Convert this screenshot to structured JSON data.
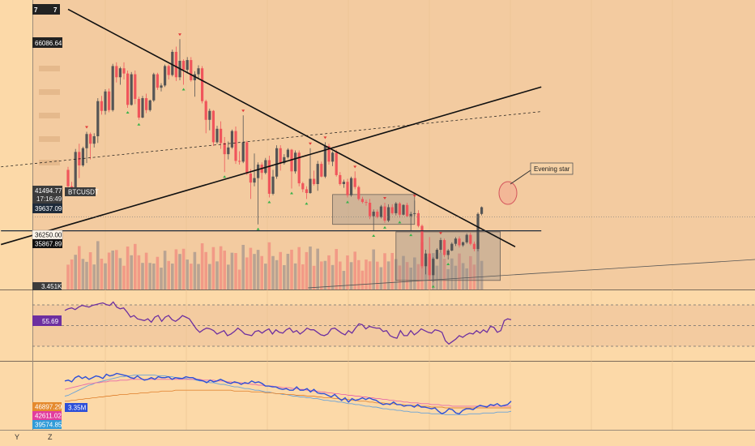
{
  "symbol": "BTCUSDT",
  "colors": {
    "page_bg": "#fcd9a8",
    "pane_bg": "#f3cba0",
    "bull": "#555555",
    "bear": "#f0555b",
    "vol_bull": "#b9a392",
    "vol_bear": "#f29a86",
    "rsi": "#6d2fa0",
    "obv": "#2d4fd8",
    "ma_fast": "#e86aa8",
    "ma_mid": "#e38a3a",
    "ma_slow": "#6aa3d8",
    "trend": "#111111",
    "marker_up": "#e33a3a",
    "marker_down": "#39b24a"
  },
  "price_labels": {
    "top": "7",
    "top_suffix": "7",
    "high": "66086.64",
    "current": "41494.77",
    "countdown": "17:16:49",
    "level": "39637.09",
    "low_a": "36250.00",
    "low_b": "35867.89",
    "volume": "3.451K"
  },
  "annotation": "Evening star",
  "rsi_value": "55.69",
  "obv_labels": {
    "v1": "46897.29",
    "v2": "42611.02",
    "v3": "39574.85",
    "obv": "3.35M"
  },
  "bottom_axis": {
    "y_label": "Y",
    "z_label": "Z"
  },
  "chart_data": {
    "type": "candlestick",
    "symbol": "BTCUSDT",
    "price_range": [
      32000,
      70000
    ],
    "candles": [
      [
        47800,
        48200,
        44700,
        45600
      ],
      [
        45600,
        46200,
        44800,
        45300
      ],
      [
        45300,
        50600,
        45100,
        50200
      ],
      [
        50200,
        51300,
        46700,
        48400
      ],
      [
        48400,
        50900,
        48200,
        50700
      ],
      [
        50700,
        52900,
        48700,
        52600
      ],
      [
        52600,
        52800,
        49200,
        51300
      ],
      [
        51300,
        52700,
        50800,
        52300
      ],
      [
        52300,
        57400,
        51400,
        57000
      ],
      [
        57000,
        57700,
        55200,
        55700
      ],
      [
        55700,
        58600,
        55200,
        58300
      ],
      [
        58300,
        58700,
        55500,
        55800
      ],
      [
        55800,
        62000,
        55600,
        61700
      ],
      [
        61700,
        62200,
        59500,
        60200
      ],
      [
        60200,
        61600,
        59200,
        61400
      ],
      [
        61400,
        62200,
        59900,
        60700
      ],
      [
        60700,
        61100,
        56100,
        56500
      ],
      [
        56500,
        60900,
        56400,
        60600
      ],
      [
        60600,
        61100,
        56600,
        57300
      ],
      [
        57300,
        57600,
        54500,
        54800
      ],
      [
        54800,
        57700,
        54700,
        57400
      ],
      [
        57400,
        58000,
        55400,
        55800
      ],
      [
        55800,
        57200,
        55600,
        57100
      ],
      [
        57100,
        60800,
        56900,
        60600
      ],
      [
        60600,
        60800,
        58500,
        58800
      ],
      [
        58800,
        59400,
        58300,
        59100
      ],
      [
        59100,
        61900,
        58900,
        61700
      ],
      [
        61700,
        61900,
        59900,
        60500
      ],
      [
        60500,
        63900,
        60300,
        63600
      ],
      [
        63600,
        64300,
        59700,
        60200
      ],
      [
        60200,
        65300,
        59800,
        62400
      ],
      [
        62400,
        62600,
        59200,
        61200
      ],
      [
        61200,
        62900,
        60700,
        62500
      ],
      [
        62500,
        62900,
        59600,
        59800
      ],
      [
        59800,
        61000,
        57600,
        60600
      ],
      [
        60600,
        61800,
        60000,
        61400
      ],
      [
        61400,
        61700,
        56700,
        57000
      ],
      [
        57000,
        57200,
        52700,
        54500
      ],
      [
        54500,
        56000,
        53100,
        55700
      ],
      [
        55700,
        55800,
        51000,
        51500
      ],
      [
        51500,
        53700,
        51300,
        53300
      ],
      [
        53300,
        54300,
        50600,
        51400
      ],
      [
        51400,
        52200,
        47500,
        49900
      ],
      [
        49900,
        51600,
        49200,
        50800
      ],
      [
        50800,
        53200,
        50600,
        53000
      ],
      [
        53000,
        53600,
        48600,
        49000
      ],
      [
        49000,
        50300,
        48500,
        48900
      ],
      [
        48900,
        55100,
        48700,
        51500
      ],
      [
        51500,
        51700,
        47100,
        47300
      ],
      [
        47300,
        47900,
        43900,
        46100
      ],
      [
        46100,
        50000,
        45600,
        46700
      ],
      [
        46700,
        48800,
        40500,
        48500
      ],
      [
        48500,
        48800,
        46500,
        47400
      ],
      [
        47400,
        49400,
        47200,
        49100
      ],
      [
        49100,
        49700,
        44100,
        44600
      ],
      [
        44600,
        47800,
        44400,
        46900
      ],
      [
        46900,
        51100,
        46600,
        50700
      ],
      [
        50700,
        51100,
        47700,
        48700
      ],
      [
        48700,
        49900,
        48500,
        49500
      ],
      [
        49500,
        50700,
        49300,
        50500
      ],
      [
        50500,
        50600,
        45300,
        47600
      ],
      [
        47600,
        50400,
        47300,
        50100
      ],
      [
        50100,
        50400,
        45600,
        46000
      ],
      [
        46000,
        46200,
        44800,
        45200
      ],
      [
        45200,
        45600,
        43900,
        44700
      ],
      [
        44700,
        50700,
        44600,
        46600
      ],
      [
        46600,
        47700,
        45700,
        45900
      ],
      [
        45900,
        49000,
        45000,
        48600
      ],
      [
        48600,
        48900,
        46800,
        46900
      ],
      [
        46900,
        51500,
        46700,
        51000
      ],
      [
        51000,
        51300,
        48500,
        48900
      ],
      [
        48900,
        50300,
        48300,
        50100
      ],
      [
        50100,
        50500,
        46900,
        47100
      ],
      [
        47100,
        47500,
        45700,
        45900
      ],
      [
        45900,
        46500,
        45400,
        46200
      ],
      [
        46200,
        46600,
        44100,
        44400
      ],
      [
        44400,
        46900,
        44200,
        46700
      ],
      [
        46700,
        47600,
        45200,
        45500
      ],
      [
        45500,
        45700,
        43700,
        43900
      ],
      [
        43900,
        44200,
        43300,
        43500
      ],
      [
        43500,
        43800,
        43000,
        43400
      ],
      [
        43400,
        43900,
        41200,
        41600
      ],
      [
        41600,
        42500,
        39600,
        42200
      ],
      [
        42200,
        42500,
        41300,
        41500
      ],
      [
        41500,
        43100,
        41300,
        42900
      ],
      [
        42900,
        43400,
        40700,
        41000
      ],
      [
        41000,
        43200,
        40800,
        42800
      ],
      [
        42800,
        43200,
        41800,
        42000
      ],
      [
        42000,
        43500,
        41700,
        43300
      ],
      [
        43300,
        43500,
        41400,
        41800
      ],
      [
        41800,
        43200,
        41700,
        43100
      ],
      [
        43100,
        43400,
        41500,
        41600
      ],
      [
        41600,
        42200,
        39700,
        41900
      ],
      [
        41900,
        43700,
        41600,
        42000
      ],
      [
        42000,
        42400,
        40100,
        40300
      ],
      [
        40300,
        40500,
        34600,
        34900
      ],
      [
        34900,
        37100,
        33800,
        36600
      ],
      [
        36600,
        38800,
        33100,
        33700
      ],
      [
        33700,
        36100,
        32800,
        35900
      ],
      [
        35900,
        37300,
        35800,
        37100
      ],
      [
        37100,
        38700,
        36700,
        38400
      ],
      [
        38400,
        38600,
        36100,
        36400
      ],
      [
        36400,
        37200,
        35800,
        37000
      ],
      [
        37000,
        38100,
        36900,
        37900
      ],
      [
        37900,
        38800,
        37600,
        38600
      ],
      [
        38600,
        38900,
        37400,
        37700
      ],
      [
        37700,
        38200,
        37500,
        38100
      ],
      [
        38100,
        39300,
        37900,
        39100
      ],
      [
        39100,
        39400,
        37700,
        37900
      ],
      [
        37900,
        38200,
        36900,
        37200
      ],
      [
        37200,
        42100,
        36900,
        41900
      ],
      [
        41900,
        42900,
        41700,
        42800
      ]
    ],
    "trendlines": [
      {
        "name": "descending resistance",
        "from": [
          0,
          69300
        ],
        "to": [
          120,
          37500
        ]
      },
      {
        "name": "ascending support",
        "from": [
          -18,
          37800
        ],
        "to": [
          127,
          58900
        ]
      },
      {
        "name": "dashed",
        "from": [
          -18,
          48200
        ],
        "to": [
          127,
          55600
        ]
      },
      {
        "name": "horizontal level",
        "from": [
          -18,
          39637.09
        ],
        "to": [
          127,
          39637.09
        ]
      }
    ],
    "boxes": [
      {
        "from_index": 71,
        "to_index": 93,
        "top": 44500,
        "bottom": 40500
      },
      {
        "from_index": 88,
        "to_index": 116,
        "top": 39500,
        "bottom": 33000
      }
    ],
    "rsi": {
      "value": 55.69,
      "bands": [
        70,
        50,
        30
      ],
      "values": [
        68,
        70,
        71,
        69,
        72,
        74,
        73,
        72,
        74,
        75,
        76,
        77,
        75,
        74,
        78,
        72,
        70,
        71,
        66,
        60,
        62,
        58,
        57,
        56,
        58,
        54,
        60,
        62,
        55,
        60,
        62,
        57,
        55,
        58,
        62,
        60,
        58,
        52,
        46,
        42,
        45,
        47,
        46,
        44,
        40,
        42,
        44,
        38,
        40,
        43,
        47,
        44,
        40,
        39,
        38,
        43,
        44,
        41,
        44,
        46,
        40,
        45,
        42,
        41,
        45,
        47,
        42,
        44,
        40,
        43,
        47,
        45,
        45,
        42,
        39,
        38,
        40,
        46,
        47,
        44,
        41,
        39,
        44,
        41,
        47,
        52,
        51,
        46,
        49,
        48,
        47,
        47,
        43,
        44,
        38,
        36,
        35,
        44,
        38,
        38,
        44,
        39,
        42,
        46,
        44,
        42,
        41,
        45,
        44,
        42,
        32,
        28,
        31,
        34,
        38,
        36,
        39,
        41,
        40,
        44,
        41,
        45,
        42,
        49,
        48,
        42,
        44,
        56,
        58,
        57
      ],
      "y_range": [
        10,
        90
      ]
    },
    "obv": {
      "value": "3.35M",
      "series": {
        "obv": [
          68,
          69,
          67,
          72,
          74,
          71,
          73,
          70,
          72,
          74,
          73,
          71,
          76,
          74,
          75,
          77,
          76,
          75,
          74,
          72,
          71,
          74,
          71,
          69,
          70,
          72,
          70,
          73,
          72,
          72,
          73,
          70,
          72,
          71,
          71,
          73,
          72,
          72,
          70,
          69,
          68,
          66,
          69,
          67,
          68,
          70,
          68,
          66,
          65,
          67,
          66,
          64,
          66,
          65,
          68,
          66,
          67,
          65,
          62,
          62,
          61,
          61,
          59,
          58,
          59,
          57,
          57,
          61,
          57,
          57,
          59,
          55,
          58,
          54,
          53,
          53,
          51,
          49,
          52,
          48,
          45,
          48,
          43,
          47,
          45,
          46,
          48,
          46,
          48,
          46,
          45,
          42,
          40,
          41,
          40,
          43,
          40,
          40,
          38,
          39,
          39,
          37,
          40,
          37,
          37,
          36,
          35,
          36,
          32,
          29,
          31,
          35,
          34,
          30,
          29,
          33,
          35,
          35,
          34,
          37,
          39,
          38,
          37,
          40,
          39,
          41,
          38,
          39,
          40,
          44
        ],
        "ma_fast": [
          58,
          59,
          60,
          61,
          62,
          63,
          64,
          65,
          65,
          66,
          66,
          67,
          67,
          68,
          68,
          68,
          69,
          69,
          69,
          70,
          70,
          70,
          70,
          70,
          70,
          70,
          70,
          70,
          70,
          70,
          70,
          70,
          70,
          70,
          70,
          70,
          70,
          70,
          70,
          70,
          69,
          69,
          69,
          69,
          68,
          68,
          68,
          67,
          67,
          66,
          66,
          66,
          65,
          65,
          64,
          64,
          63,
          63,
          62,
          62,
          62,
          61,
          61,
          60,
          60,
          60,
          59,
          59,
          58,
          58,
          57,
          57,
          56,
          56,
          55,
          55,
          54,
          54,
          53,
          53,
          52,
          52,
          51,
          51,
          50,
          50,
          49,
          49,
          48,
          48,
          47,
          47,
          46,
          46,
          45,
          45,
          44,
          44,
          43,
          43,
          42,
          42,
          42,
          41,
          41,
          41,
          40,
          40,
          40,
          39,
          39,
          39,
          38,
          38,
          38,
          38,
          38,
          38,
          38,
          38,
          38,
          38,
          38,
          38,
          38,
          38,
          38,
          38,
          38,
          38
        ],
        "ma_mid": [
          44,
          44,
          45,
          45,
          46,
          46,
          47,
          47,
          48,
          48,
          49,
          49,
          50,
          50,
          51,
          51,
          52,
          52,
          52,
          53,
          53,
          53,
          54,
          54,
          54,
          55,
          55,
          55,
          56,
          56,
          56,
          56,
          57,
          57,
          57,
          57,
          57,
          57,
          57,
          57,
          57,
          57,
          57,
          57,
          57,
          57,
          57,
          57,
          57,
          56,
          56,
          56,
          56,
          56,
          55,
          55,
          55,
          55,
          54,
          54,
          54,
          53,
          53,
          53,
          52,
          52,
          52,
          51,
          51,
          51,
          50,
          50,
          50,
          49,
          49,
          48,
          48,
          48,
          47,
          47,
          46,
          46,
          46,
          45,
          45,
          44,
          44,
          44,
          43,
          43,
          42,
          42,
          42,
          41,
          41,
          41,
          40,
          40,
          40,
          39,
          39,
          39,
          38,
          38,
          38,
          38,
          37,
          37,
          37,
          37,
          36,
          36,
          36,
          36,
          36,
          36,
          36,
          36,
          36,
          36,
          36,
          36,
          36,
          36,
          36,
          36,
          36,
          36,
          36,
          36
        ],
        "ma_slow": [
          50,
          51,
          53,
          55,
          57,
          59,
          61,
          63,
          64,
          66,
          67,
          68,
          69,
          70,
          71,
          72,
          73,
          73,
          74,
          74,
          75,
          75,
          75,
          75,
          75,
          75,
          75,
          74,
          74,
          74,
          73,
          73,
          72,
          72,
          71,
          71,
          70,
          70,
          69,
          68,
          68,
          67,
          66,
          66,
          65,
          64,
          64,
          63,
          62,
          61,
          61,
          60,
          59,
          59,
          58,
          57,
          57,
          56,
          55,
          55,
          54,
          53,
          53,
          52,
          52,
          51,
          50,
          50,
          49,
          49,
          48,
          48,
          47,
          47,
          46,
          45,
          45,
          44,
          44,
          43,
          43,
          42,
          41,
          41,
          40,
          40,
          39,
          38,
          38,
          37,
          37,
          36,
          35,
          35,
          34,
          34,
          33,
          33,
          32,
          32,
          31,
          31,
          31,
          30,
          30,
          30,
          29,
          29,
          29,
          29,
          28,
          28,
          28,
          28,
          28,
          28,
          28,
          29,
          29,
          29,
          29,
          30,
          30,
          30,
          30,
          31,
          31,
          31,
          31,
          32
        ]
      },
      "y_range": [
        10,
        90
      ]
    }
  }
}
